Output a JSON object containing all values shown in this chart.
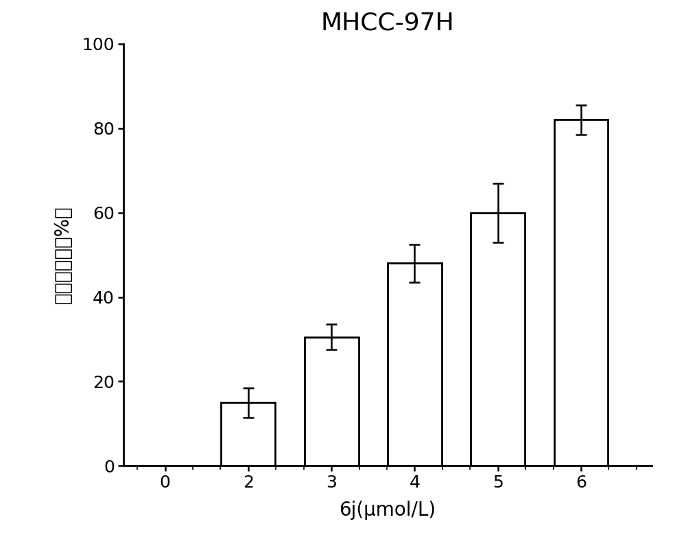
{
  "title": "MHCC-97H",
  "xlabel": "6j(μmol/L)",
  "ylabel": "细胞抑制率（%）",
  "x_tick_labels": [
    "0",
    "2",
    "3",
    "4",
    "5",
    "6"
  ],
  "x_positions": [
    0,
    1,
    2,
    3,
    4,
    5
  ],
  "bar_positions": [
    1,
    2,
    3,
    4,
    5
  ],
  "bar_values": [
    15.0,
    30.5,
    48.0,
    60.0,
    82.0
  ],
  "bar_errors": [
    3.5,
    3.0,
    4.5,
    7.0,
    3.5
  ],
  "bar_width": 0.65,
  "bar_facecolor": "#ffffff",
  "bar_edgecolor": "#000000",
  "error_color": "#000000",
  "ylim": [
    0,
    100
  ],
  "yticks": [
    0,
    20,
    40,
    60,
    80,
    100
  ],
  "title_fontsize": 26,
  "axis_label_fontsize": 20,
  "tick_fontsize": 18,
  "background_color": "#ffffff",
  "spine_linewidth": 2.0,
  "error_linewidth": 1.8,
  "capsize": 6
}
